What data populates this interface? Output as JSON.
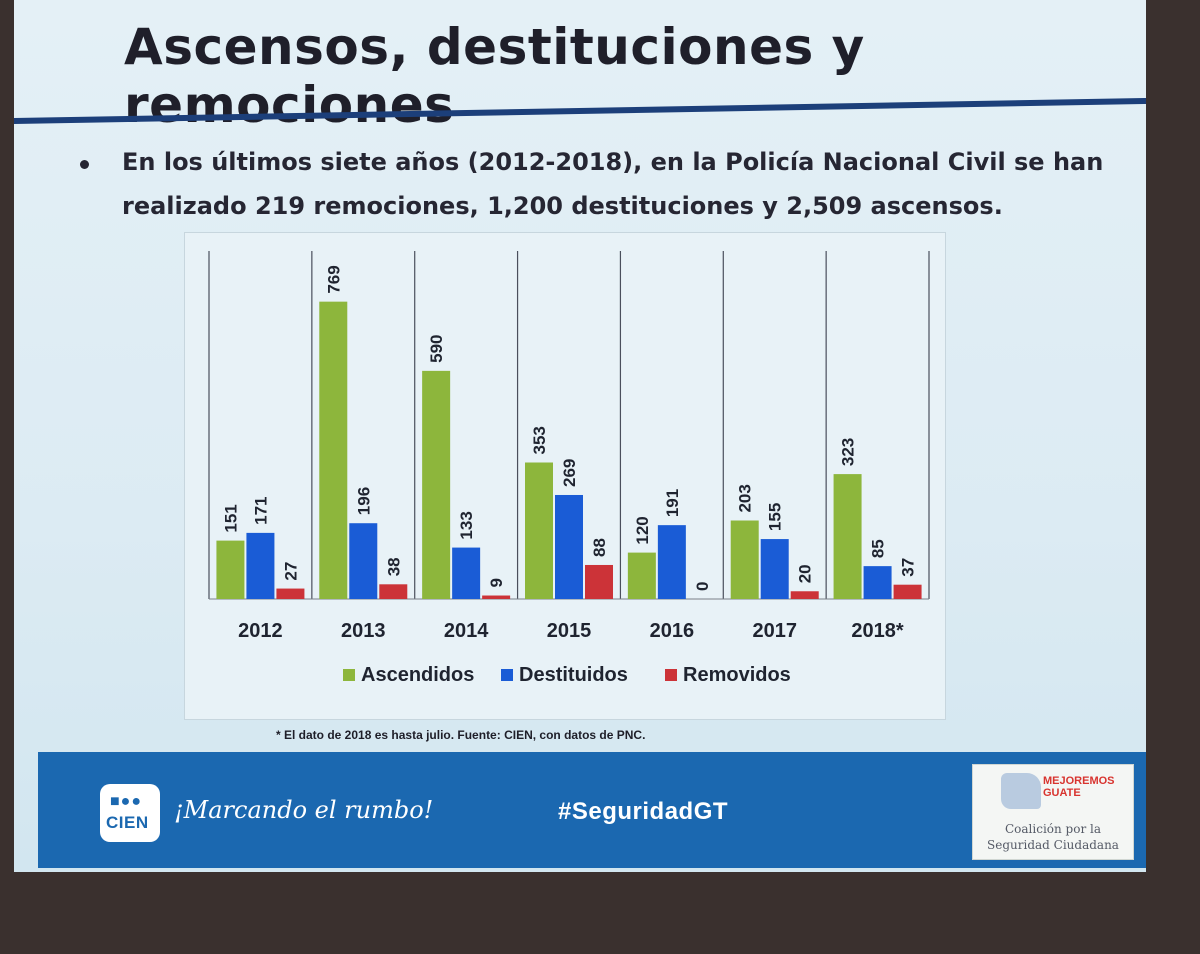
{
  "slide": {
    "title": "Ascensos, destituciones y remociones",
    "bullet_line1": "En los últimos siete años (2012-2018), en la Policía Nacional Civil se han",
    "bullet_line2": "realizado 219 remociones, 1,200 destituciones y 2,509 ascensos.",
    "footnote": "* El dato de 2018 es hasta julio. Fuente: CIEN, con datos de PNC."
  },
  "footer": {
    "logo_text": "CIEN",
    "slogan": "¡Marcando el rumbo!",
    "hashtag": "#SeguridadGT",
    "partner_brand_line1": "MEJOREMOS",
    "partner_brand_line2": "GUATE",
    "partner_name_line1": "Coalición por la",
    "partner_name_line2": "Seguridad Ciudadana"
  },
  "colors": {
    "accent": "#1b68b0",
    "ascendidos": "#8db63c",
    "destituidos": "#1a5cd6",
    "removidos": "#cc3338"
  },
  "chart_data": {
    "type": "bar",
    "categories": [
      "2012",
      "2013",
      "2014",
      "2015",
      "2016",
      "2017",
      "2018*"
    ],
    "series": [
      {
        "name": "Ascendidos",
        "values": [
          151,
          769,
          590,
          353,
          120,
          203,
          323
        ]
      },
      {
        "name": "Destituidos",
        "values": [
          171,
          196,
          133,
          269,
          191,
          155,
          85
        ]
      },
      {
        "name": "Removidos",
        "values": [
          27,
          38,
          9,
          88,
          0,
          20,
          37
        ]
      }
    ],
    "ylim": [
      0,
      900
    ],
    "grid": false,
    "legend_position": "bottom"
  }
}
